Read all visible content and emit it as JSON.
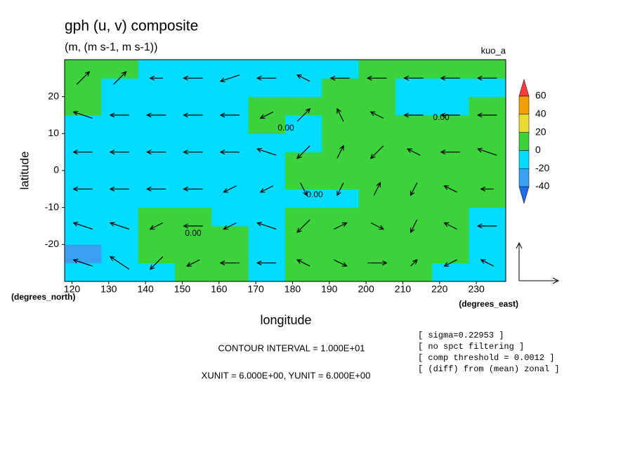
{
  "chart_data": {
    "type": "contour",
    "title": "gph (u, v) composite",
    "subtitle": "(m, (m s-1, m s-1))",
    "run_label": "kuo_a",
    "x_label": "longitude",
    "y_label": "latitude",
    "x_unit": "(degrees_east)",
    "y_unit": "(degrees_north)",
    "xlim": [
      118,
      238
    ],
    "ylim": [
      -30,
      30
    ],
    "xticks": [
      120,
      130,
      140,
      150,
      160,
      170,
      180,
      190,
      200,
      210,
      220,
      230
    ],
    "yticks": [
      -20,
      -10,
      0,
      10,
      20
    ],
    "field": {
      "lon_edges": [
        118,
        128,
        138,
        148,
        158,
        168,
        178,
        188,
        198,
        208,
        218,
        228,
        238
      ],
      "lat_edges": [
        -30,
        -25,
        -20,
        -15,
        -10,
        -5,
        0,
        5,
        10,
        15,
        20,
        25,
        30
      ],
      "values": [
        [
          -10,
          -10,
          -10,
          10,
          10,
          -10,
          10,
          10,
          10,
          10,
          -10,
          -10
        ],
        [
          -30,
          -10,
          10,
          10,
          10,
          -10,
          10,
          10,
          10,
          10,
          10,
          -10
        ],
        [
          -10,
          -10,
          10,
          10,
          10,
          -10,
          10,
          10,
          10,
          10,
          10,
          -10
        ],
        [
          -10,
          -10,
          10,
          10,
          -10,
          -10,
          10,
          10,
          10,
          10,
          10,
          -10
        ],
        [
          -10,
          -10,
          -10,
          -10,
          -10,
          -10,
          -10,
          -10,
          10,
          10,
          10,
          10
        ],
        [
          -10,
          -10,
          -10,
          -10,
          -10,
          -10,
          10,
          10,
          10,
          10,
          10,
          10
        ],
        [
          -10,
          -10,
          -10,
          -10,
          -10,
          -10,
          10,
          10,
          10,
          10,
          10,
          10
        ],
        [
          -10,
          -10,
          -10,
          -10,
          -10,
          -10,
          -10,
          10,
          10,
          10,
          10,
          10
        ],
        [
          -10,
          -10,
          -10,
          -10,
          -10,
          10,
          -10,
          10,
          10,
          10,
          10,
          10
        ],
        [
          10,
          -10,
          -10,
          -10,
          -10,
          10,
          10,
          10,
          10,
          -10,
          -10,
          10
        ],
        [
          10,
          -10,
          -10,
          -10,
          -10,
          -10,
          -10,
          10,
          10,
          -10,
          -10,
          -10
        ],
        [
          10,
          10,
          -10,
          -10,
          -10,
          -10,
          -10,
          -10,
          10,
          10,
          10,
          10
        ]
      ]
    },
    "vectors": {
      "lons": [
        123,
        133,
        143,
        153,
        163,
        173,
        183,
        193,
        203,
        213,
        223,
        233
      ],
      "lats": [
        -25,
        -15,
        -5,
        5,
        15,
        25
      ],
      "u": [
        [
          -3,
          -3,
          -2,
          -2,
          -3,
          -3,
          -2,
          2,
          3,
          1,
          -2,
          -2
        ],
        [
          -3,
          -3,
          -2,
          -3,
          -2,
          -3,
          -2,
          2,
          2,
          -1,
          -2,
          -3
        ],
        [
          -3,
          -3,
          -3,
          -3,
          -2,
          -2,
          1,
          -1,
          1,
          -1,
          -2,
          -2
        ],
        [
          -3,
          -3,
          -3,
          -3,
          -3,
          -3,
          -2,
          1,
          -2,
          -2,
          -3,
          -3
        ],
        [
          -3,
          -3,
          -3,
          -3,
          -3,
          -2,
          2,
          -1,
          -2,
          -3,
          -3,
          -3
        ],
        [
          2,
          2,
          -2,
          -3,
          -3,
          -3,
          -2,
          -3,
          -3,
          -3,
          -3,
          -3
        ]
      ],
      "v": [
        [
          1,
          2,
          -2,
          -1,
          0,
          0,
          1,
          -1,
          0,
          1,
          -1,
          1
        ],
        [
          1,
          1,
          -1,
          0,
          -1,
          1,
          -2,
          1,
          -1,
          -2,
          1,
          0
        ],
        [
          0,
          0,
          0,
          0,
          -1,
          -1,
          -2,
          -2,
          2,
          -2,
          1,
          0
        ],
        [
          0,
          0,
          0,
          0,
          0,
          1,
          -2,
          2,
          -2,
          1,
          0,
          1
        ],
        [
          1,
          0,
          0,
          0,
          0,
          -1,
          2,
          2,
          1,
          0,
          0,
          0
        ],
        [
          2,
          2,
          0,
          0,
          -1,
          0,
          1,
          0,
          0,
          0,
          0,
          0
        ]
      ]
    },
    "colorbar": {
      "levels": [
        -40,
        -20,
        0,
        20,
        40,
        60
      ],
      "colors": [
        "#1e6eeb",
        "#3ca0f0",
        "#00dcff",
        "#3cd23c",
        "#e6dc32",
        "#f0a000",
        "#fa3c3c"
      ]
    },
    "contour_labels": [
      "0.00",
      "0.00",
      "0.00",
      "0.00"
    ],
    "notes": [
      "CONTOUR INTERVAL = 1.000E+01",
      "XUNIT = 6.000E+00, YUNIT = 6.000E+00"
    ],
    "info": [
      "[ sigma=0.22953 ]",
      "[ no spct filtering ]",
      "[ comp threshold = 0.0012 ]",
      "[ (diff) from (mean) zonal ]"
    ]
  }
}
